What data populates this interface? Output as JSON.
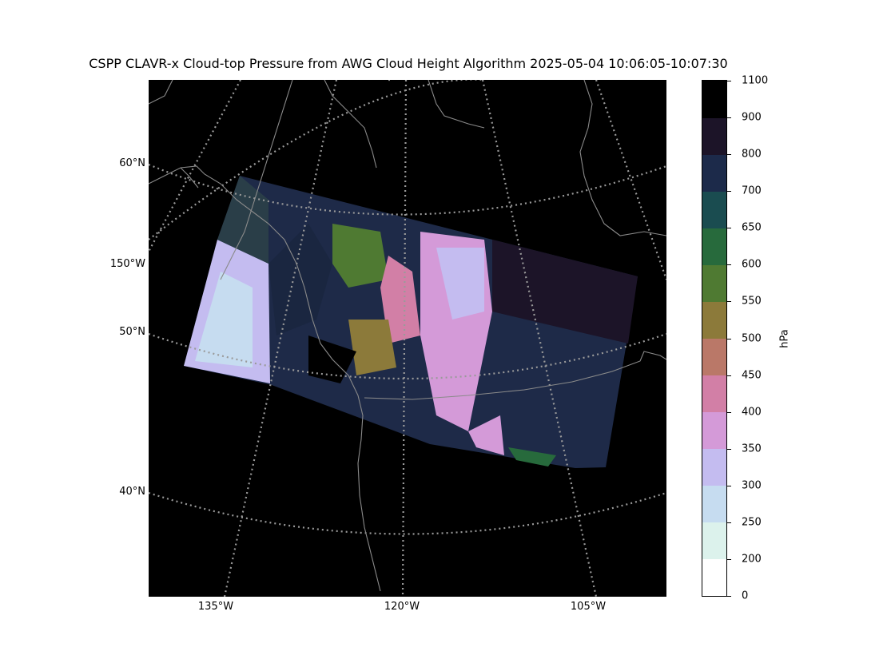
{
  "title": "CSPP CLAVR-x Cloud-top Pressure from AWG Cloud Height Algorithm 2025-05-04 10:06:05-10:07:30",
  "map": {
    "projection": "lambert-conformal",
    "lat_labels": [
      "60°N",
      "150°W",
      "50°N",
      "40°N"
    ],
    "lon_labels": [
      "135°W",
      "120°W",
      "105°W"
    ],
    "graticule": "dotted gray",
    "coastlines": "gray",
    "background": "#000000"
  },
  "colorbar": {
    "unit": "hPa",
    "tick_labels": [
      "1100",
      "900",
      "800",
      "700",
      "650",
      "600",
      "550",
      "500",
      "450",
      "400",
      "350",
      "300",
      "250",
      "200",
      "0"
    ],
    "bands": [
      {
        "range": [
          0,
          200
        ],
        "color": "#ffffff"
      },
      {
        "range": [
          200,
          250
        ],
        "color": "#dcf2ec"
      },
      {
        "range": [
          250,
          300
        ],
        "color": "#c6dcf0"
      },
      {
        "range": [
          300,
          350
        ],
        "color": "#c4bcf0"
      },
      {
        "range": [
          350,
          400
        ],
        "color": "#d49ad8"
      },
      {
        "range": [
          400,
          450
        ],
        "color": "#d27fa6"
      },
      {
        "range": [
          450,
          500
        ],
        "color": "#ba7868"
      },
      {
        "range": [
          500,
          550
        ],
        "color": "#8c7a3a"
      },
      {
        "range": [
          550,
          600
        ],
        "color": "#4f7a32"
      },
      {
        "range": [
          600,
          650
        ],
        "color": "#276a3c"
      },
      {
        "range": [
          650,
          700
        ],
        "color": "#1a4c50"
      },
      {
        "range": [
          700,
          800
        ],
        "color": "#1c2a4a"
      },
      {
        "range": [
          800,
          900
        ],
        "color": "#1c1428"
      },
      {
        "range": [
          900,
          1100
        ],
        "color": "#000000"
      }
    ]
  }
}
